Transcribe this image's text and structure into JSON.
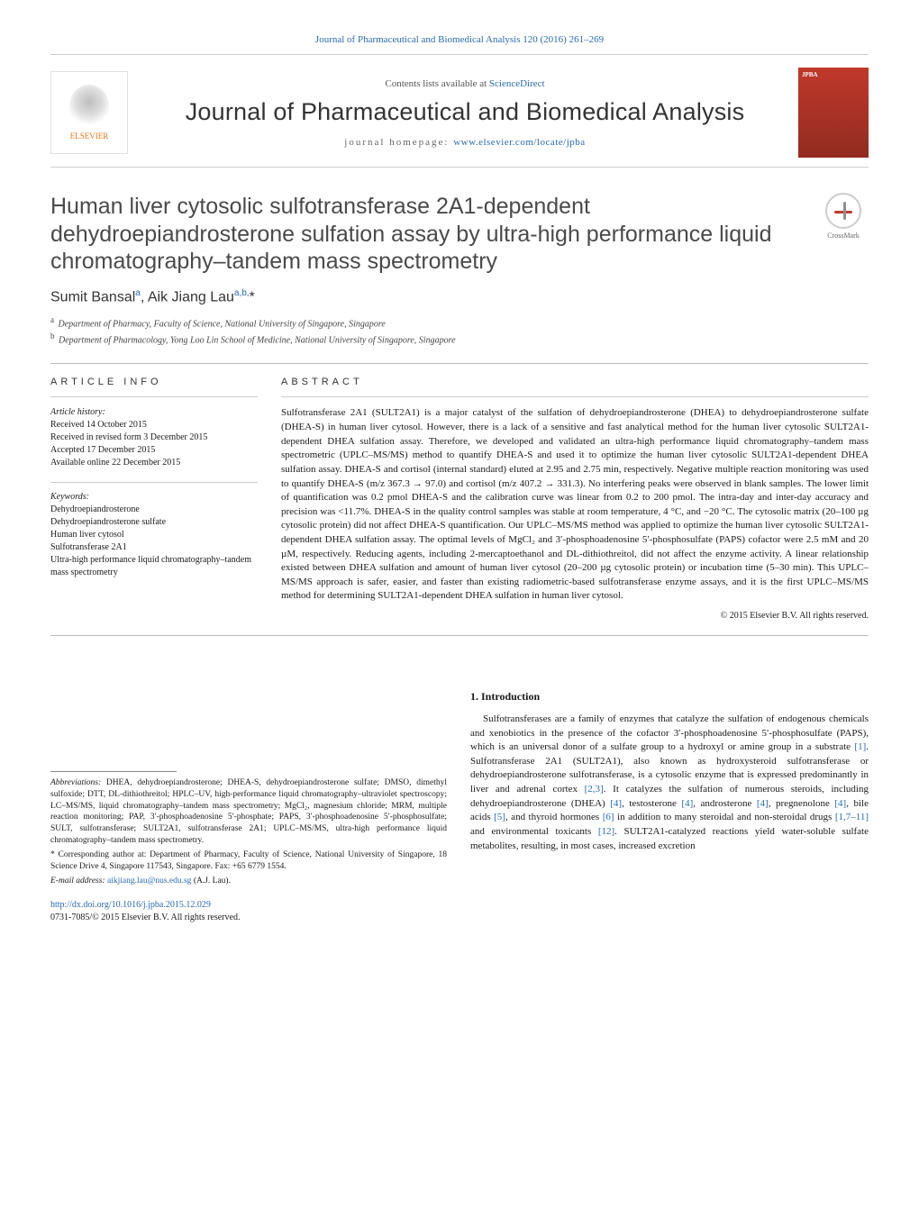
{
  "citation": "Journal of Pharmaceutical and Biomedical Analysis 120 (2016) 261–269",
  "masthead": {
    "contents_prefix": "Contents lists available at ",
    "contents_link": "ScienceDirect",
    "journal_name": "Journal of Pharmaceutical and Biomedical Analysis",
    "homepage_prefix": "journal homepage: ",
    "homepage_url": "www.elsevier.com/locate/jpba",
    "publisher_label": "ELSEVIER",
    "cover_abbrev": "JPBA"
  },
  "crossmark_label": "CrossMark",
  "title": "Human liver cytosolic sulfotransferase 2A1-dependent dehydroepiandrosterone sulfation assay by ultra-high performance liquid chromatography–tandem mass spectrometry",
  "authors_html": "Sumit Bansal<sup>a</sup>, Aik Jiang Lau<sup>a,b,</sup>*",
  "affiliations": [
    {
      "sup": "a",
      "text": "Department of Pharmacy, Faculty of Science, National University of Singapore, Singapore"
    },
    {
      "sup": "b",
      "text": "Department of Pharmacology, Yong Loo Lin School of Medicine, National University of Singapore, Singapore"
    }
  ],
  "article_info_head": "ARTICLE INFO",
  "abstract_head": "ABSTRACT",
  "history": {
    "label": "Article history:",
    "received": "Received 14 October 2015",
    "revised": "Received in revised form 3 December 2015",
    "accepted": "Accepted 17 December 2015",
    "online": "Available online 22 December 2015"
  },
  "keywords_label": "Keywords:",
  "keywords": [
    "Dehydroepiandrosterone",
    "Dehydroepiandrosterone sulfate",
    "Human liver cytosol",
    "Sulfotransferase 2A1",
    "Ultra-high performance liquid chromatography–tandem mass spectrometry"
  ],
  "abstract": "Sulfotransferase 2A1 (SULT2A1) is a major catalyst of the sulfation of dehydroepiandrosterone (DHEA) to dehydroepiandrosterone sulfate (DHEA-S) in human liver cytosol. However, there is a lack of a sensitive and fast analytical method for the human liver cytosolic SULT2A1-dependent DHEA sulfation assay. Therefore, we developed and validated an ultra-high performance liquid chromatography–tandem mass spectrometric (UPLC–MS/MS) method to quantify DHEA-S and used it to optimize the human liver cytosolic SULT2A1-dependent DHEA sulfation assay. DHEA-S and cortisol (internal standard) eluted at 2.95 and 2.75 min, respectively. Negative multiple reaction monitoring was used to quantify DHEA-S (m/z 367.3 → 97.0) and cortisol (m/z 407.2 → 331.3). No interfering peaks were observed in blank samples. The lower limit of quantification was 0.2 pmol DHEA-S and the calibration curve was linear from 0.2 to 200 pmol. The intra-day and inter-day accuracy and precision was <11.7%. DHEA-S in the quality control samples was stable at room temperature, 4 °C, and −20 °C. The cytosolic matrix (20–100 µg cytosolic protein) did not affect DHEA-S quantification. Our UPLC–MS/MS method was applied to optimize the human liver cytosolic SULT2A1-dependent DHEA sulfation assay. The optimal levels of MgCl₂ and 3′-phosphoadenosine 5′-phosphosulfate (PAPS) cofactor were 2.5 mM and 20 µM, respectively. Reducing agents, including 2-mercaptoethanol and DL-dithiothreitol, did not affect the enzyme activity. A linear relationship existed between DHEA sulfation and amount of human liver cytosol (20–200 µg cytosolic protein) or incubation time (5–30 min). This UPLC–MS/MS approach is safer, easier, and faster than existing radiometric-based sulfotransferase enzyme assays, and it is the first UPLC–MS/MS method for determining SULT2A1-dependent DHEA sulfation in human liver cytosol.",
  "copyright": "© 2015 Elsevier B.V. All rights reserved.",
  "footnotes": {
    "abbr_label": "Abbreviations:",
    "abbr_text": " DHEA, dehydroepiandrosterone; DHEA-S, dehydroepiandrosterone sulfate; DMSO, dimethyl sulfoxide; DTT, DL-dithiothreitol; HPLC–UV, high-performance liquid chromatography–ultraviolet spectroscopy; LC–MS/MS, liquid chromatography–tandem mass spectrometry; MgCl₂, magnesium chloride; MRM, multiple reaction monitoring; PAP, 3′-phosphoadenosine 5′-phosphate; PAPS, 3′-phosphoadenosine 5′-phosphosulfate; SULT, sulfotransferase; SULT2A1, sulfotransferase 2A1; UPLC–MS/MS, ultra-high performance liquid chromatography–tandem mass spectrometry.",
    "corr_marker": "*",
    "corr_text": " Corresponding author at: Department of Pharmacy, Faculty of Science, National University of Singapore, 18 Science Drive 4, Singapore 117543, Singapore. Fax: +65 6779 1554.",
    "email_label": "E-mail address: ",
    "email": "aikjiang.lau@nus.edu.sg",
    "email_suffix": " (A.J. Lau)."
  },
  "intro": {
    "heading": "1. Introduction",
    "para": "Sulfotransferases are a family of enzymes that catalyze the sulfation of endogenous chemicals and xenobiotics in the presence of the cofactor 3′-phosphoadenosine 5′-phosphosulfate (PAPS), which is an universal donor of a sulfate group to a hydroxyl or amine group in a substrate [1]. Sulfotransferase 2A1 (SULT2A1), also known as hydroxysteroid sulfotransferase or dehydroepiandrosterone sulfotransferase, is a cytosolic enzyme that is expressed predominantly in liver and adrenal cortex [2,3]. It catalyzes the sulfation of numerous steroids, including dehydroepiandrosterone (DHEA) [4], testosterone [4], androsterone [4], pregnenolone [4], bile acids [5], and thyroid hormones [6] in addition to many steroidal and non-steroidal drugs [1,7–11] and environmental toxicants [12]. SULT2A1-catalyzed reactions yield water-soluble sulfate metabolites, resulting, in most cases, increased excretion"
  },
  "doi": {
    "url": "http://dx.doi.org/10.1016/j.jpba.2015.12.029",
    "issn_line": "0731-7085/© 2015 Elsevier B.V. All rights reserved."
  },
  "colors": {
    "link": "#2a6bb0",
    "orange": "#e67817",
    "cover": "#c0392b"
  }
}
